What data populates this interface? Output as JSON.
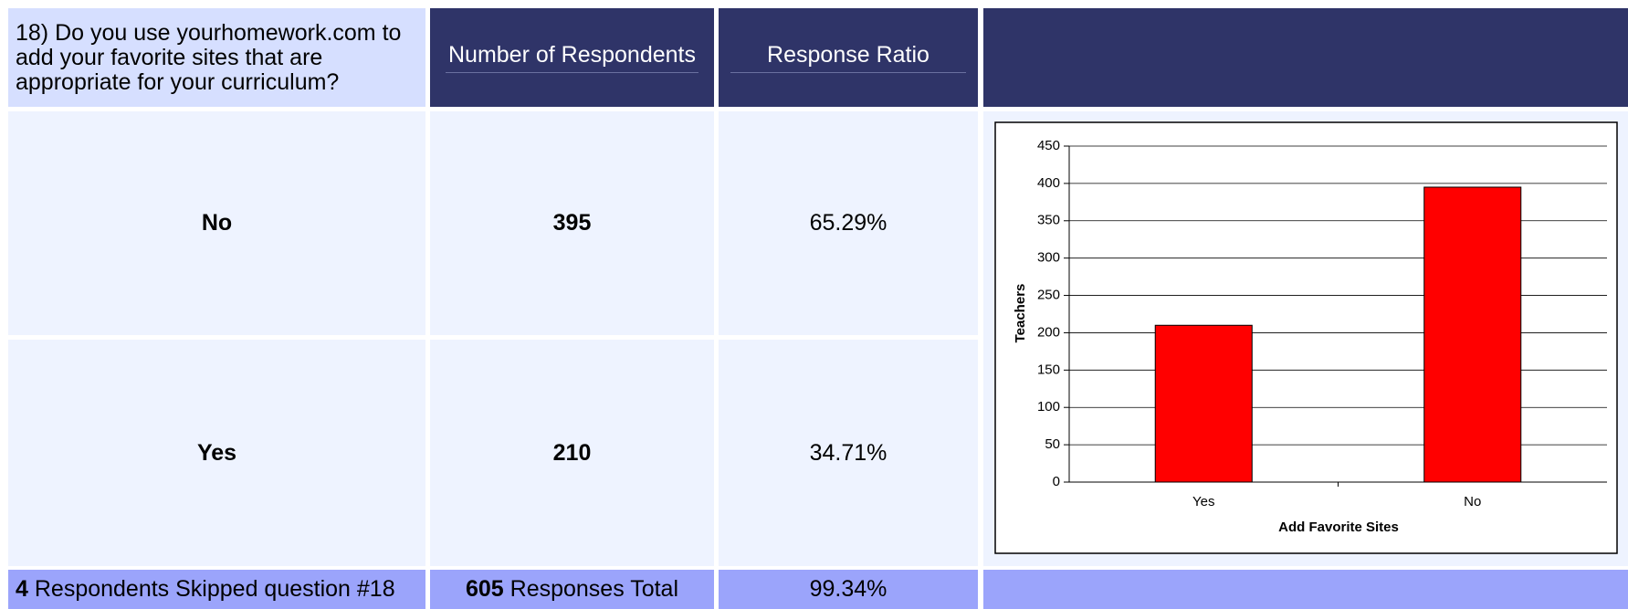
{
  "table": {
    "question": "18) Do you use yourhomework.com to add your favorite sites that are appropriate for your curriculum?",
    "headers": [
      "Number of Respondents",
      "Response Ratio"
    ],
    "rows": [
      [
        "No",
        "395",
        "65.29%"
      ],
      [
        "Yes",
        "210",
        "34.71%"
      ]
    ],
    "footer": {
      "skipped_count": "4",
      "skipped_text": "Respondents Skipped question #18",
      "total_count": "605",
      "total_text": "Responses Total",
      "ratio": "99.34%"
    }
  },
  "chart_data": {
    "type": "bar",
    "categories": [
      "Yes",
      "No"
    ],
    "values": [
      210,
      395
    ],
    "color": "#ff0000",
    "ylim": [
      0,
      450
    ],
    "yticks": [
      0,
      50,
      100,
      150,
      200,
      250,
      300,
      350,
      400,
      450
    ],
    "grid": true,
    "y_label": "Teachers",
    "x_label": "Add Favorite Sites"
  }
}
